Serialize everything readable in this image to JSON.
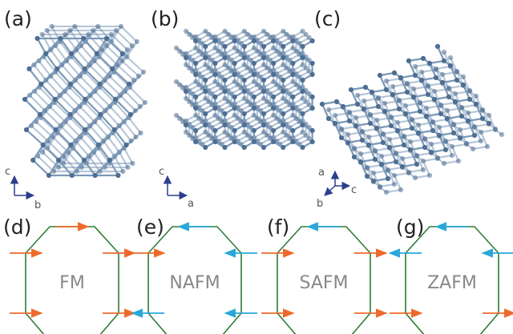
{
  "panels": [
    {
      "label": "(a)",
      "axes": {
        "vertical": "c",
        "horizontal": "b"
      }
    },
    {
      "label": "(b)",
      "axes": {
        "vertical": "c",
        "horizontal": "a"
      }
    },
    {
      "label": "(c)",
      "axes": {
        "up": "a",
        "right": "c",
        "down": "b"
      }
    },
    {
      "label": "(d)",
      "config": "FM"
    },
    {
      "label": "(e)",
      "config": "NAFM"
    },
    {
      "label": "(f)",
      "config": "SAFM"
    },
    {
      "label": "(g)",
      "config": "ZAFM"
    }
  ],
  "colors": {
    "atom": "#4e6e92",
    "bond": "#7b99b8",
    "hexagon": "#2e7d32",
    "spin_up": "#ee6a2c",
    "spin_down": "#29a8d8",
    "axis_arrow": "#2c3e8c"
  },
  "spin_configs": {
    "FM": {
      "top": "right",
      "upper_left": "right",
      "upper_right": "right",
      "lower_left": "right",
      "lower_right": "right",
      "bottom": "right"
    },
    "NAFM": {
      "top": "left",
      "upper_left": "right",
      "upper_right": "left",
      "lower_left": "left",
      "lower_right": "left",
      "bottom": "right"
    },
    "SAFM": {
      "top": "left",
      "upper_left": "right",
      "upper_right": "right",
      "lower_left": "right",
      "lower_right": "right",
      "bottom": "left"
    },
    "ZAFM": {
      "top": "left",
      "upper_left": "left",
      "upper_right": "left",
      "lower_left": "right",
      "lower_right": "right",
      "bottom": "right"
    }
  }
}
